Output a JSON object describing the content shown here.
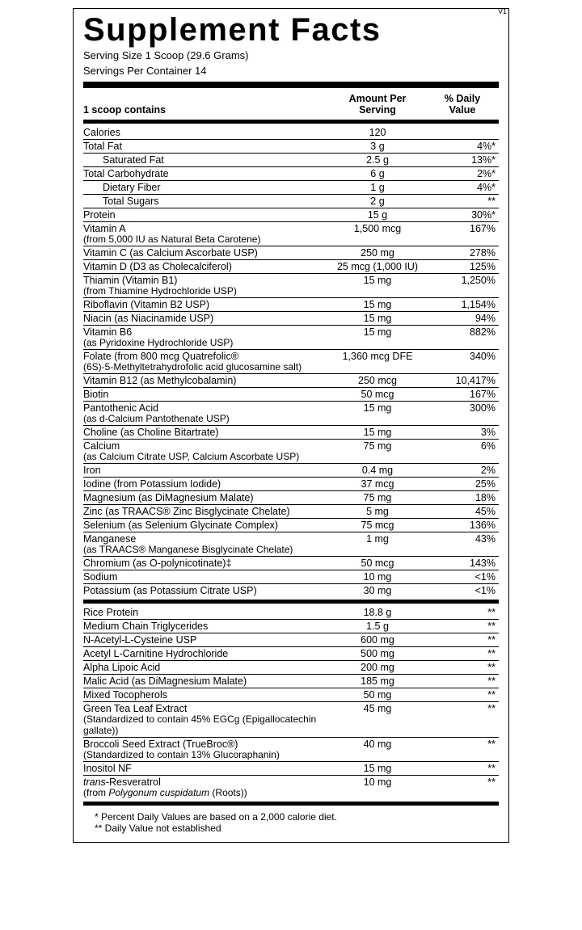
{
  "version": "V1",
  "title": "Supplement Facts",
  "serving_size": "Serving Size 1 Scoop (29.6 Grams)",
  "servings_per": "Servings Per Container  14",
  "header": {
    "c1": "1 scoop contains",
    "c2a": "Amount Per",
    "c2b": "Serving",
    "c3a": "% Daily",
    "c3b": "Value"
  },
  "rows1": [
    {
      "n": "Calories",
      "a": "120",
      "d": ""
    },
    {
      "n": "Total Fat",
      "a": "3 g",
      "d": "4%*"
    },
    {
      "n": "Saturated Fat",
      "a": "2.5 g",
      "d": "13%*",
      "indent": true
    },
    {
      "n": "Total Carbohydrate",
      "a": "6 g",
      "d": "2%*"
    },
    {
      "n": "Dietary Fiber",
      "a": "1 g",
      "d": "4%*",
      "indent": true
    },
    {
      "n": "Total Sugars",
      "a": "2 g",
      "d": "**",
      "indent": true
    },
    {
      "n": "Protein",
      "a": "15 g",
      "d": "30%*"
    },
    {
      "n": "Vitamin A",
      "sub": "(from 5,000 IU as Natural Beta Carotene)",
      "a": "1,500 mcg",
      "d": "167%"
    },
    {
      "n": "Vitamin C (as Calcium Ascorbate USP)",
      "a": "250 mg",
      "d": "278%"
    },
    {
      "n": "Vitamin D (D3 as Cholecalciferol)",
      "a": "25 mcg (1,000 IU)",
      "d": "125%"
    },
    {
      "n": "Thiamin (Vitamin B1)",
      "sub": "(from Thiamine Hydrochloride USP)",
      "a": "15 mg",
      "d": "1,250%"
    },
    {
      "n": "Riboflavin (Vitamin B2 USP)",
      "a": "15 mg",
      "d": "1,154%"
    },
    {
      "n": "Niacin (as Niacinamide USP)",
      "a": "15 mg",
      "d": "94%"
    },
    {
      "n": "Vitamin B6",
      "sub": "(as Pyridoxine Hydrochloride USP)",
      "a": "15 mg",
      "d": "882%"
    },
    {
      "n": "Folate (from 800 mcg Quatrefolic®",
      "sub": "(6S)-5-Methyltetrahydrofolic acid glucosamine salt)",
      "a": "1,360 mcg DFE",
      "d": "340%"
    },
    {
      "n": "Vitamin B12 (as Methylcobalamin)",
      "a": "250 mcg",
      "d": "10,417%"
    },
    {
      "n": "Biotin",
      "a": "50 mcg",
      "d": "167%"
    },
    {
      "n": "Pantothenic Acid",
      "sub": "(as d-Calcium Pantothenate USP)",
      "a": "15 mg",
      "d": "300%"
    },
    {
      "n": "Choline (as Choline Bitartrate)",
      "a": "15 mg",
      "d": "3%"
    },
    {
      "n": "Calcium",
      "sub": "(as Calcium Citrate USP, Calcium Ascorbate USP)",
      "a": "75 mg",
      "d": "6%"
    },
    {
      "n": "Iron",
      "a": "0.4 mg",
      "d": "2%"
    },
    {
      "n": "Iodine (from Potassium Iodide)",
      "a": "37 mcg",
      "d": "25%"
    },
    {
      "n": "Magnesium (as DiMagnesium Malate)",
      "a": "75 mg",
      "d": "18%"
    },
    {
      "n": "Zinc (as TRAACS® Zinc Bisglycinate Chelate)",
      "a": "5 mg",
      "d": "45%"
    },
    {
      "n": "Selenium (as Selenium Glycinate Complex)",
      "a": "75 mcg",
      "d": "136%"
    },
    {
      "n": "Manganese",
      "sub": "(as TRAACS® Manganese Bisglycinate Chelate)",
      "a": "1 mg",
      "d": "43%"
    },
    {
      "n": "Chromium (as O-polynicotinate)‡",
      "a": "50 mcg",
      "d": "143%"
    },
    {
      "n": "Sodium",
      "a": "10 mg",
      "d": "<1%"
    },
    {
      "n": "Potassium (as Potassium Citrate USP)",
      "a": "30 mg",
      "d": "<1%"
    }
  ],
  "rows2": [
    {
      "n": "Rice Protein",
      "a": "18.8 g",
      "d": "**"
    },
    {
      "n": "Medium Chain Triglycerides",
      "a": "1.5 g",
      "d": "**"
    },
    {
      "n": "N-Acetyl-L-Cysteine USP",
      "a": "600 mg",
      "d": "**"
    },
    {
      "n": "Acetyl L-Carnitine Hydrochloride",
      "a": "500 mg",
      "d": "**"
    },
    {
      "n": "Alpha Lipoic Acid",
      "a": "200 mg",
      "d": "**"
    },
    {
      "n": "Malic Acid (as DiMagnesium Malate)",
      "a": "185 mg",
      "d": "**"
    },
    {
      "n": "Mixed Tocopherols",
      "a": "50 mg",
      "d": "**"
    },
    {
      "n": "Green Tea Leaf Extract",
      "sub": "(Standardized to contain 45% EGCg (Epigallocatechin gallate))",
      "a": "45 mg",
      "d": "**"
    },
    {
      "n": "Broccoli Seed Extract (TrueBroc®)",
      "sub": "(Standardized to contain 13% Glucoraphanin)",
      "a": "40 mg",
      "d": "**"
    },
    {
      "n": "Inositol NF",
      "a": "15 mg",
      "d": "**"
    },
    {
      "n": "<span class='ital'>trans</span>-Resveratrol",
      "sub": "(from <span class='ital'>Polygonum cuspidatum</span> (Roots))",
      "a": "10 mg",
      "d": "**"
    }
  ],
  "foot1": "* Percent Daily Values are based on a 2,000 calorie diet.",
  "foot2": "** Daily Value not established"
}
